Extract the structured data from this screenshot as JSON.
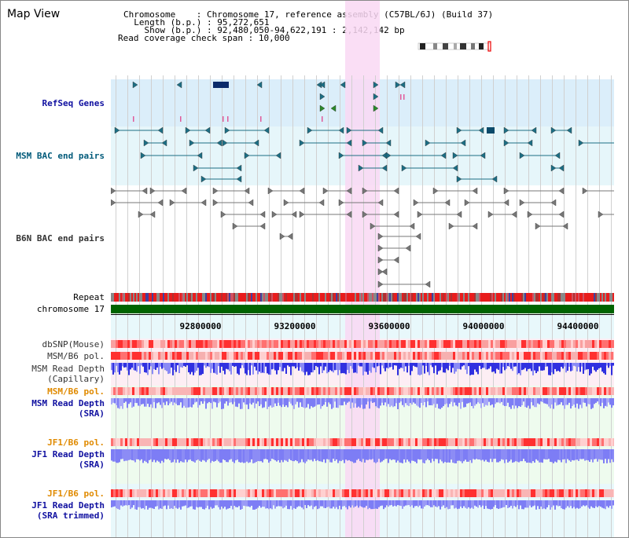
{
  "title": "Map View",
  "info": {
    "chromosome_key": "Chromosome",
    "chromosome_val": "Chromosome 17, reference assembly (C57BL/6J) (Build 37)",
    "length_key": "Length (b.p.)",
    "length_val": "95,272,651",
    "show_key": "Show (b.p.)",
    "show_val": "92,480,050-94,622,191 : 2,142,142 bp",
    "span_key": "Read coverage check span",
    "span_val": "10,000"
  },
  "tracks": {
    "refseq": "RefSeq Genes",
    "msm_bac": "MSM BAC end pairs",
    "b6n_bac": "B6N BAC end pairs",
    "repeat": "Repeat",
    "chromosome": "chromosome 17",
    "dbsnp": "dbSNP(Mouse)",
    "msm_b6_pol_1": "MSM/B6 pol.",
    "msm_read_depth_cap_1": "MSM Read Depth",
    "msm_read_depth_cap_2": "(Capillary)",
    "msm_b6_pol_2": "MSM/B6 pol.",
    "msm_read_depth_sra_1": "MSM Read Depth",
    "msm_read_depth_sra_2": "(SRA)",
    "jf1_b6_pol_1": "JF1/B6 pol.",
    "jf1_read_depth_sra_1": "JF1 Read Depth",
    "jf1_read_depth_sra_2": "(SRA)",
    "jf1_b6_pol_2": "JF1/B6 pol.",
    "jf1_read_depth_trim_1": "JF1 Read Depth",
    "jf1_read_depth_trim_2": "(SRA trimmed)"
  },
  "ruler": {
    "ticks": [
      "92800000",
      "93200000",
      "93600000",
      "94000000",
      "94400000"
    ]
  },
  "colors": {
    "highlight": "#f9d8f3",
    "refseq_bg": "#dbeefa",
    "msm_bg": "#e6f6fa",
    "msm_feature": "#1c6e84",
    "b6n_feature": "#777777",
    "chromosome_bar": "#006400",
    "pol_red": "#ee2a2a",
    "depth_blue": "#3030e0",
    "depth_light": "#7d7df5",
    "bg_lightgreen": "#eefbee",
    "bg_lightcyan": "#e8f8fb"
  }
}
